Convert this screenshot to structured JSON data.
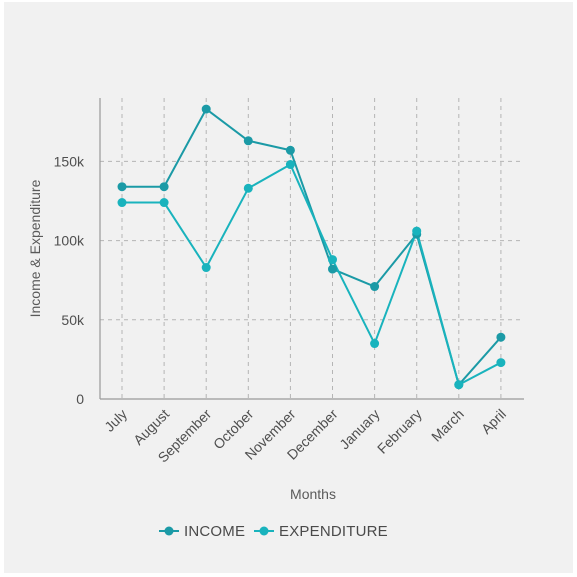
{
  "chart_data": {
    "type": "line",
    "categories": [
      "July",
      "August",
      "September",
      "October",
      "November",
      "December",
      "January",
      "February",
      "March",
      "April"
    ],
    "series": [
      {
        "name": "INCOME",
        "color": "#1b9aa6",
        "values": [
          134000,
          134000,
          183000,
          163000,
          157000,
          82000,
          71000,
          104000,
          9000,
          39000
        ]
      },
      {
        "name": "EXPENDITURE",
        "color": "#19b3bd",
        "values": [
          124000,
          124000,
          83000,
          133000,
          148000,
          88000,
          35000,
          106000,
          9000,
          23000
        ]
      }
    ],
    "title": "",
    "xlabel": "Months",
    "ylabel": "Income & Expenditure",
    "ylim": [
      0,
      190000
    ],
    "yticks": [
      {
        "value": 0,
        "label": "0"
      },
      {
        "value": 50000,
        "label": "50k"
      },
      {
        "value": 100000,
        "label": "100k"
      },
      {
        "value": 150000,
        "label": "150k"
      }
    ],
    "grid": true,
    "legend_position": "bottom-center",
    "background_color": "#f1f1f1",
    "axis_color": "#9a9a9a",
    "grid_color": "#b5b5b5"
  }
}
